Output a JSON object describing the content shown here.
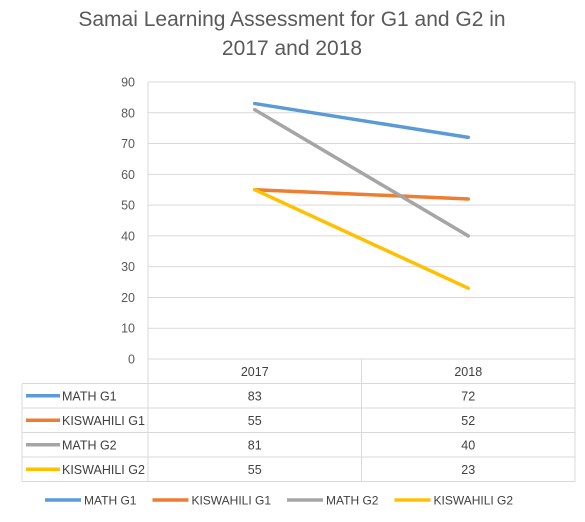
{
  "chart_data": {
    "type": "line",
    "title": "Samai Learning Assessment for G1 and G2 in 2017 and 2018",
    "title_lines": [
      "Samai Learning Assessment for G1 and G2 in",
      "2017 and 2018"
    ],
    "categories": [
      "2017",
      "2018"
    ],
    "ylim": [
      0,
      90
    ],
    "yticks": [
      "0",
      "10",
      "20",
      "30",
      "40",
      "50",
      "60",
      "70",
      "80",
      "90"
    ],
    "grid": true,
    "legend_position": "bottom",
    "data_table": true,
    "series": [
      {
        "name": "MATH G1",
        "values": [
          83,
          72
        ],
        "color": "#5B9BD5"
      },
      {
        "name": "KISWAHILI G1",
        "values": [
          55,
          52
        ],
        "color": "#ED7D31"
      },
      {
        "name": "MATH G2",
        "values": [
          81,
          40
        ],
        "color": "#A5A5A5"
      },
      {
        "name": "KISWAHILI G2",
        "values": [
          55,
          23
        ],
        "color": "#FFC000"
      }
    ]
  }
}
